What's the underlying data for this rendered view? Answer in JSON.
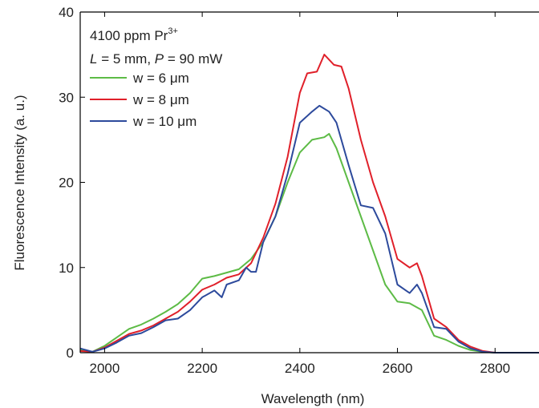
{
  "chart_data": {
    "type": "line",
    "xlabel": "Wavelength (nm)",
    "ylabel": "Fluorescence Intensity (a. u.)",
    "annotations": [
      {
        "text": "4100 ppm Pr",
        "sup": "3+"
      },
      {
        "parts": [
          "L",
          " = 5 mm, ",
          "P",
          " = 90 mW"
        ]
      }
    ],
    "xlim": [
      1950,
      2890
    ],
    "ylim": [
      0,
      40
    ],
    "xticks": [
      2000,
      2200,
      2400,
      2600,
      2800
    ],
    "yticks": [
      0,
      10,
      20,
      30,
      40
    ],
    "series": [
      {
        "name": "w = 6 μm",
        "color": "#5dbb46",
        "x": [
          1950,
          1975,
          2000,
          2025,
          2050,
          2075,
          2100,
          2125,
          2150,
          2175,
          2200,
          2225,
          2250,
          2275,
          2300,
          2325,
          2350,
          2375,
          2400,
          2425,
          2450,
          2460,
          2475,
          2500,
          2525,
          2550,
          2575,
          2600,
          2625,
          2650,
          2675,
          2700,
          2725,
          2750,
          2775,
          2800,
          2850,
          2890
        ],
        "values": [
          0.3,
          0.1,
          0.8,
          1.8,
          2.8,
          3.3,
          4,
          4.8,
          5.7,
          7,
          8.7,
          9,
          9.4,
          9.8,
          11,
          13,
          16,
          20,
          23.5,
          25,
          25.3,
          25.7,
          24,
          20,
          16,
          12,
          8,
          6,
          5.8,
          5,
          2,
          1.5,
          0.8,
          0.3,
          0.1,
          0,
          0,
          0
        ]
      },
      {
        "name": "w = 8 μm",
        "color": "#e0202a",
        "x": [
          1950,
          1975,
          2000,
          2025,
          2050,
          2075,
          2100,
          2125,
          2150,
          2175,
          2200,
          2225,
          2250,
          2275,
          2300,
          2325,
          2350,
          2375,
          2400,
          2415,
          2435,
          2450,
          2470,
          2485,
          2500,
          2525,
          2550,
          2575,
          2600,
          2625,
          2640,
          2650,
          2675,
          2700,
          2725,
          2750,
          2775,
          2800,
          2890
        ],
        "values": [
          0.2,
          0.1,
          0.6,
          1.4,
          2.2,
          2.6,
          3.2,
          4,
          4.8,
          6,
          7.4,
          8,
          8.8,
          9.2,
          10.5,
          13.5,
          17.5,
          23,
          30.5,
          32.8,
          33,
          35,
          33.8,
          33.6,
          31,
          25,
          20,
          16,
          11,
          10,
          10.5,
          9,
          4,
          3,
          1.5,
          0.7,
          0.2,
          0,
          0
        ]
      },
      {
        "name": "w = 10 μm",
        "color": "#2d4a9c",
        "x": [
          1950,
          1975,
          2000,
          2025,
          2050,
          2075,
          2100,
          2125,
          2150,
          2175,
          2200,
          2225,
          2240,
          2250,
          2275,
          2290,
          2300,
          2310,
          2325,
          2350,
          2375,
          2400,
          2425,
          2440,
          2460,
          2475,
          2500,
          2525,
          2550,
          2575,
          2600,
          2625,
          2640,
          2650,
          2675,
          2700,
          2725,
          2750,
          2775,
          2800,
          2890
        ],
        "values": [
          0.5,
          0.1,
          0.5,
          1.2,
          2,
          2.3,
          3,
          3.8,
          4,
          5,
          6.5,
          7.3,
          6.5,
          8,
          8.5,
          10,
          9.5,
          9.5,
          13,
          16,
          21,
          27,
          28.3,
          29,
          28.3,
          27,
          22,
          17.3,
          17,
          14,
          8,
          7,
          8,
          7,
          3,
          2.8,
          1.3,
          0.5,
          0.1,
          0,
          0
        ]
      }
    ]
  }
}
